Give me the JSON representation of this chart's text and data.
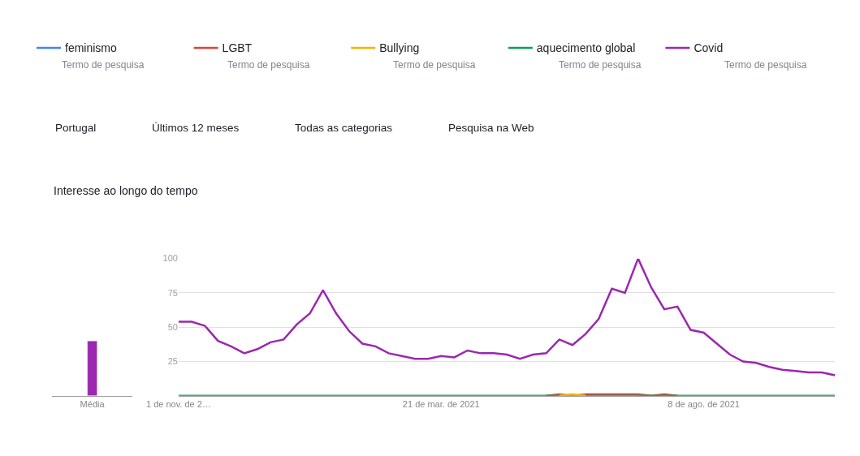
{
  "chart_data": [
    {
      "type": "other",
      "title": "Interesse ao longo do tempo",
      "annotations": [
        "Termo de pesquisa",
        "Termo de pesquisa",
        "Termo de pesquisa",
        "Termo de pesquisa",
        "Termo de pesquisa",
        "Portugal",
        "Últimos 12 meses",
        "Todas as categorias",
        "Pesquisa na Web"
      ]
    },
    {
      "type": "bar",
      "categories": [
        "Média"
      ],
      "series": [
        {
          "color": "#9c27b0",
          "values": [
            40
          ]
        }
      ],
      "ylim": [
        0,
        100
      ],
      "tick_labels": "x",
      "grid": false,
      "legend": false
    },
    {
      "type": "line",
      "x": [
        "2020-11-01",
        "2020-11-08",
        "2020-11-15",
        "2020-11-22",
        "2020-11-29",
        "2020-12-06",
        "2020-12-13",
        "2020-12-20",
        "2020-12-27",
        "2021-01-03",
        "2021-01-10",
        "2021-01-17",
        "2021-01-24",
        "2021-01-31",
        "2021-02-07",
        "2021-02-14",
        "2021-02-21",
        "2021-02-28",
        "2021-03-07",
        "2021-03-14",
        "2021-03-21",
        "2021-03-28",
        "2021-04-04",
        "2021-04-11",
        "2021-04-18",
        "2021-04-25",
        "2021-05-02",
        "2021-05-09",
        "2021-05-16",
        "2021-05-23",
        "2021-05-30",
        "2021-06-06",
        "2021-06-13",
        "2021-06-20",
        "2021-06-27",
        "2021-07-04",
        "2021-07-11",
        "2021-07-18",
        "2021-07-25",
        "2021-08-01",
        "2021-08-08",
        "2021-08-15",
        "2021-08-22",
        "2021-08-29",
        "2021-09-05",
        "2021-09-12",
        "2021-09-19",
        "2021-09-26",
        "2021-10-03",
        "2021-10-10",
        "2021-10-17"
      ],
      "series": [
        {
          "name": "feminismo",
          "color": "#4285f4",
          "values": [
            null,
            null,
            null,
            null,
            null,
            null,
            null,
            null,
            null,
            null,
            null,
            null,
            null,
            null,
            null,
            null,
            null,
            null,
            null,
            null,
            null,
            null,
            null,
            null,
            null,
            null,
            null,
            null,
            null,
            null,
            null,
            null,
            null,
            null,
            null,
            null,
            null,
            null,
            null,
            null,
            null,
            null,
            null,
            null,
            null,
            null,
            null,
            null,
            null,
            null,
            null
          ]
        },
        {
          "name": "LGBT",
          "color": "#db4437",
          "values": [
            null,
            null,
            null,
            null,
            null,
            null,
            null,
            null,
            null,
            null,
            null,
            null,
            null,
            null,
            null,
            null,
            null,
            null,
            null,
            null,
            null,
            null,
            null,
            null,
            null,
            null,
            null,
            null,
            0,
            1,
            0,
            1,
            1,
            1,
            1,
            1,
            0,
            1,
            0,
            null,
            null,
            null,
            null,
            null,
            null,
            null,
            null,
            null,
            null,
            null,
            null
          ]
        },
        {
          "name": "Bullying",
          "color": "#f4b400",
          "values": [
            null,
            null,
            null,
            null,
            null,
            null,
            null,
            null,
            null,
            null,
            null,
            null,
            null,
            null,
            null,
            null,
            null,
            null,
            null,
            null,
            null,
            null,
            null,
            null,
            null,
            null,
            null,
            null,
            null,
            0,
            1,
            0,
            null,
            null,
            null,
            null,
            null,
            null,
            null,
            null,
            null,
            null,
            null,
            null,
            null,
            null,
            null,
            null,
            null,
            null,
            null
          ]
        },
        {
          "name": "aquecimento global",
          "color": "#0f9d58",
          "values": [
            0,
            0,
            0,
            0,
            0,
            0,
            0,
            0,
            0,
            0,
            0,
            0,
            0,
            0,
            0,
            0,
            0,
            0,
            0,
            0,
            0,
            0,
            0,
            0,
            0,
            0,
            0,
            0,
            0,
            0,
            null,
            0,
            0,
            0,
            0,
            0,
            0,
            0,
            0,
            0,
            0,
            0,
            0,
            0,
            0,
            0,
            0,
            0,
            0,
            0,
            0
          ]
        },
        {
          "name": "Covid",
          "color": "#9c27b0",
          "values": [
            54,
            54,
            51,
            40,
            36,
            31,
            34,
            39,
            41,
            52,
            60,
            77,
            60,
            47,
            38,
            36,
            31,
            29,
            27,
            27,
            29,
            28,
            33,
            31,
            31,
            30,
            27,
            30,
            31,
            41,
            37,
            45,
            56,
            78,
            75,
            100,
            79,
            63,
            65,
            48,
            46,
            38,
            30,
            25,
            24,
            21,
            19,
            18,
            17,
            17,
            15
          ]
        }
      ],
      "xlim": [
        "2020-11-01",
        "2021-10-17"
      ],
      "xticks": [
        {
          "value": "2020-11-01",
          "label": "1 de nov. de 2…"
        },
        {
          "value": "2021-03-21",
          "label": "21 de mar. de 2021"
        },
        {
          "value": "2021-08-08",
          "label": "8 de ago. de 2021"
        }
      ],
      "ylim": [
        0,
        100
      ],
      "yticks": [
        25,
        50,
        75,
        100
      ],
      "grid": "y",
      "legend": "top",
      "marker": "none",
      "line_style": "solid"
    }
  ]
}
